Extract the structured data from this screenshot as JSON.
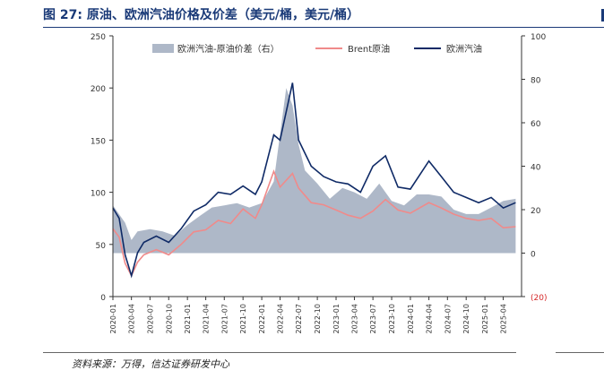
{
  "figure": {
    "title": "图 27: 原油、欧洲汽油价格及价差（美元/桶，美元/桶）",
    "source": "资料来源：万得，信达证券研发中心"
  },
  "colors": {
    "title": "#1a3a78",
    "spread_area": "#aeb8c8",
    "brent": "#f08a8a",
    "gasoline": "#0f2a66",
    "negative_label": "#d62728"
  },
  "chart_data": {
    "type": "line",
    "legend_position": "top",
    "grid": false,
    "x_tick_labels": [
      "2020-01",
      "2020-04",
      "2020-07",
      "2020-10",
      "2021-01",
      "2021-04",
      "2021-07",
      "2021-10",
      "2022-01",
      "2022-04",
      "2022-07",
      "2022-10",
      "2023-01",
      "2023-04",
      "2023-07",
      "2023-10",
      "2024-01",
      "2024-04",
      "2024-07",
      "2024-10",
      "2025-01",
      "2025-04"
    ],
    "y_left": {
      "min": 0,
      "max": 250,
      "ticks": [
        "0",
        "50",
        "100",
        "150",
        "200",
        "250"
      ]
    },
    "y_right": {
      "min": -20,
      "max": 100,
      "ticks": [
        "(20)",
        "0",
        "20",
        "40",
        "60",
        "80",
        "100"
      ]
    },
    "series": [
      {
        "name": "欧洲汽油-原油价差（右）",
        "type": "area",
        "axis": "right",
        "x": [
          "2020-01",
          "2020-03",
          "2020-04",
          "2020-05",
          "2020-07",
          "2020-09",
          "2020-11",
          "2021-01",
          "2021-03",
          "2021-05",
          "2021-07",
          "2021-09",
          "2021-11",
          "2022-01",
          "2022-03",
          "2022-05",
          "2022-06",
          "2022-07",
          "2022-08",
          "2022-10",
          "2022-12",
          "2023-02",
          "2023-04",
          "2023-06",
          "2023-08",
          "2023-10",
          "2023-12",
          "2024-02",
          "2024-04",
          "2024-06",
          "2024-08",
          "2024-10",
          "2024-12",
          "2025-02",
          "2025-04",
          "2025-06"
        ],
        "values": [
          22,
          14,
          6,
          10,
          11,
          10,
          8,
          13,
          17,
          21,
          22,
          23,
          21,
          23,
          33,
          76,
          68,
          50,
          38,
          32,
          25,
          30,
          28,
          25,
          32,
          24,
          22,
          27,
          27,
          26,
          20,
          18,
          18,
          21,
          24,
          25
        ]
      },
      {
        "name": "Brent原油",
        "type": "line",
        "axis": "left",
        "x": [
          "2020-01",
          "2020-02",
          "2020-03",
          "2020-04",
          "2020-05",
          "2020-06",
          "2020-08",
          "2020-10",
          "2020-12",
          "2021-02",
          "2021-04",
          "2021-06",
          "2021-08",
          "2021-10",
          "2021-12",
          "2022-01",
          "2022-03",
          "2022-04",
          "2022-06",
          "2022-07",
          "2022-09",
          "2022-11",
          "2023-01",
          "2023-03",
          "2023-05",
          "2023-07",
          "2023-09",
          "2023-11",
          "2024-01",
          "2024-04",
          "2024-06",
          "2024-08",
          "2024-10",
          "2024-12",
          "2025-02",
          "2025-04",
          "2025-06"
        ],
        "values": [
          65,
          57,
          32,
          20,
          33,
          40,
          45,
          40,
          50,
          62,
          64,
          73,
          70,
          84,
          75,
          88,
          120,
          105,
          118,
          104,
          90,
          88,
          83,
          78,
          75,
          82,
          93,
          83,
          80,
          90,
          85,
          79,
          75,
          73,
          75,
          66,
          67
        ]
      },
      {
        "name": "欧洲汽油",
        "type": "line",
        "axis": "left",
        "x": [
          "2020-01",
          "2020-02",
          "2020-03",
          "2020-04",
          "2020-05",
          "2020-06",
          "2020-08",
          "2020-10",
          "2020-12",
          "2021-02",
          "2021-04",
          "2021-06",
          "2021-08",
          "2021-10",
          "2021-12",
          "2022-01",
          "2022-03",
          "2022-04",
          "2022-06",
          "2022-07",
          "2022-09",
          "2022-11",
          "2023-01",
          "2023-03",
          "2023-05",
          "2023-07",
          "2023-09",
          "2023-11",
          "2024-01",
          "2024-04",
          "2024-06",
          "2024-08",
          "2024-10",
          "2024-12",
          "2025-02",
          "2025-04",
          "2025-06"
        ],
        "values": [
          85,
          75,
          40,
          20,
          42,
          52,
          58,
          52,
          65,
          82,
          88,
          100,
          98,
          106,
          98,
          110,
          155,
          150,
          205,
          150,
          125,
          115,
          110,
          108,
          100,
          125,
          135,
          105,
          103,
          130,
          115,
          100,
          95,
          90,
          95,
          85,
          90
        ]
      }
    ]
  }
}
